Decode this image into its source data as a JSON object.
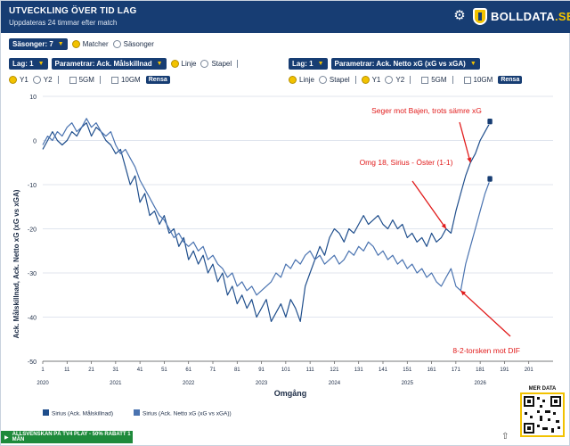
{
  "header": {
    "title": "UTVECKLING ÖVER TID LAG",
    "subtitle": "Uppdateras 24 timmar efter match",
    "brand_main": "BOLLDATA",
    "brand_suffix": ".SE"
  },
  "controls": {
    "seasons_label": "Säsonger: 7",
    "radio_matches": "Matcher",
    "radio_seasons": "Säsonger",
    "left": {
      "team_select": "Lag: 1",
      "param_select": "Parametrar: Ack. Målskillnad",
      "opt_line": "Linje",
      "opt_bar": "Stapel",
      "y1": "Y1",
      "y2": "Y2",
      "gm5": "5GM",
      "gm10": "10GM",
      "clear": "Rensa"
    },
    "right": {
      "team_select": "Lag: 1",
      "param_select": "Parametrar: Ack. Netto xG (xG vs xGA)",
      "opt_line": "Linje",
      "opt_bar": "Stapel",
      "y1": "Y1",
      "y2": "Y2",
      "gm5": "5GM",
      "gm10": "10GM",
      "clear": "Rensa"
    }
  },
  "qr_label": "MER DATA",
  "footer_banner": "ALLSVENSKAN PÅ TV4 PLAY - 50% RABATT 1 MÅN",
  "colors": {
    "navy": "#173d73",
    "yellow": "#f2c200",
    "line_dark": "#1f4e8c",
    "line_mid": "#4a73b0",
    "arrow": "#e11b1b"
  },
  "chart_data": {
    "type": "line",
    "xlabel": "Omgång",
    "ylabel": "Ack. Målskillnad, Ack. Netto xG (xG vs xGA)",
    "ylim": [
      -50,
      10
    ],
    "yticks": [
      10,
      0,
      -10,
      -20,
      -30,
      -40,
      -50
    ],
    "xticks": [
      "1",
      "11",
      "21",
      "31",
      "41",
      "51",
      "61",
      "71",
      "81",
      "91",
      "101",
      "111",
      "121",
      "131",
      "141",
      "151",
      "161",
      "171",
      "181",
      "191",
      "201"
    ],
    "season_labels": [
      "2020",
      "2021",
      "2022",
      "2023",
      "2024",
      "2025",
      "2026"
    ],
    "season_starts": [
      1,
      31,
      61,
      91,
      121,
      151,
      181
    ],
    "series": [
      {
        "name": "Sirius (Ack. Målskillnad)",
        "color": "#1f4e8c",
        "points": [
          [
            1,
            -2
          ],
          [
            3,
            0
          ],
          [
            5,
            2
          ],
          [
            7,
            0
          ],
          [
            9,
            -1
          ],
          [
            11,
            0
          ],
          [
            13,
            2
          ],
          [
            15,
            1
          ],
          [
            17,
            3
          ],
          [
            19,
            4
          ],
          [
            21,
            1
          ],
          [
            23,
            3
          ],
          [
            25,
            2
          ],
          [
            27,
            0
          ],
          [
            29,
            -1
          ],
          [
            31,
            -3
          ],
          [
            33,
            -2
          ],
          [
            35,
            -6
          ],
          [
            37,
            -10
          ],
          [
            39,
            -8
          ],
          [
            41,
            -14
          ],
          [
            43,
            -12
          ],
          [
            45,
            -17
          ],
          [
            47,
            -16
          ],
          [
            49,
            -19
          ],
          [
            51,
            -17
          ],
          [
            53,
            -21
          ],
          [
            55,
            -20
          ],
          [
            57,
            -24
          ],
          [
            59,
            -22
          ],
          [
            61,
            -27
          ],
          [
            63,
            -25
          ],
          [
            65,
            -28
          ],
          [
            67,
            -26
          ],
          [
            69,
            -30
          ],
          [
            71,
            -28
          ],
          [
            73,
            -32
          ],
          [
            75,
            -30
          ],
          [
            77,
            -35
          ],
          [
            79,
            -33
          ],
          [
            81,
            -37
          ],
          [
            83,
            -35
          ],
          [
            85,
            -38
          ],
          [
            87,
            -36
          ],
          [
            89,
            -40
          ],
          [
            91,
            -38
          ],
          [
            93,
            -36
          ],
          [
            95,
            -41
          ],
          [
            97,
            -39
          ],
          [
            99,
            -37
          ],
          [
            101,
            -40
          ],
          [
            103,
            -36
          ],
          [
            105,
            -38
          ],
          [
            107,
            -41
          ],
          [
            109,
            -33
          ],
          [
            111,
            -30
          ],
          [
            113,
            -27
          ],
          [
            115,
            -24
          ],
          [
            117,
            -26
          ],
          [
            119,
            -22
          ],
          [
            121,
            -20
          ],
          [
            123,
            -21
          ],
          [
            125,
            -23
          ],
          [
            127,
            -20
          ],
          [
            129,
            -21
          ],
          [
            131,
            -19
          ],
          [
            133,
            -17
          ],
          [
            135,
            -19
          ],
          [
            137,
            -18
          ],
          [
            139,
            -17
          ],
          [
            141,
            -19
          ],
          [
            143,
            -20
          ],
          [
            145,
            -18
          ],
          [
            147,
            -20
          ],
          [
            149,
            -19
          ],
          [
            151,
            -22
          ],
          [
            153,
            -21
          ],
          [
            155,
            -23
          ],
          [
            157,
            -22
          ],
          [
            159,
            -24
          ],
          [
            161,
            -21
          ],
          [
            163,
            -23
          ],
          [
            165,
            -22
          ],
          [
            167,
            -20
          ],
          [
            169,
            -21
          ],
          [
            171,
            -16
          ],
          [
            173,
            -12
          ],
          [
            175,
            -8
          ],
          [
            177,
            -5
          ],
          [
            179,
            -3
          ],
          [
            181,
            0
          ],
          [
            183,
            2
          ],
          [
            185,
            4
          ]
        ]
      },
      {
        "name": "Sirius (Ack. Netto xG (xG vs xGA))",
        "color": "#4a73b0",
        "points": [
          [
            1,
            -1
          ],
          [
            3,
            1
          ],
          [
            5,
            0
          ],
          [
            7,
            2
          ],
          [
            9,
            1
          ],
          [
            11,
            3
          ],
          [
            13,
            4
          ],
          [
            15,
            2
          ],
          [
            17,
            3
          ],
          [
            19,
            5
          ],
          [
            21,
            3
          ],
          [
            23,
            4
          ],
          [
            25,
            2
          ],
          [
            27,
            1
          ],
          [
            29,
            2
          ],
          [
            31,
            -1
          ],
          [
            33,
            -3
          ],
          [
            35,
            -2
          ],
          [
            37,
            -4
          ],
          [
            39,
            -6
          ],
          [
            41,
            -9
          ],
          [
            43,
            -11
          ],
          [
            45,
            -13
          ],
          [
            47,
            -15
          ],
          [
            49,
            -17
          ],
          [
            51,
            -18
          ],
          [
            53,
            -20
          ],
          [
            55,
            -22
          ],
          [
            57,
            -21
          ],
          [
            59,
            -23
          ],
          [
            61,
            -24
          ],
          [
            63,
            -23
          ],
          [
            65,
            -25
          ],
          [
            67,
            -24
          ],
          [
            69,
            -27
          ],
          [
            71,
            -26
          ],
          [
            73,
            -28
          ],
          [
            75,
            -29
          ],
          [
            77,
            -31
          ],
          [
            79,
            -30
          ],
          [
            81,
            -33
          ],
          [
            83,
            -32
          ],
          [
            85,
            -34
          ],
          [
            87,
            -33
          ],
          [
            89,
            -35
          ],
          [
            91,
            -34
          ],
          [
            93,
            -33
          ],
          [
            95,
            -32
          ],
          [
            97,
            -30
          ],
          [
            99,
            -31
          ],
          [
            101,
            -28
          ],
          [
            103,
            -29
          ],
          [
            105,
            -27
          ],
          [
            107,
            -28
          ],
          [
            109,
            -26
          ],
          [
            111,
            -25
          ],
          [
            113,
            -27
          ],
          [
            115,
            -26
          ],
          [
            117,
            -28
          ],
          [
            119,
            -27
          ],
          [
            121,
            -26
          ],
          [
            123,
            -28
          ],
          [
            125,
            -27
          ],
          [
            127,
            -25
          ],
          [
            129,
            -26
          ],
          [
            131,
            -24
          ],
          [
            133,
            -25
          ],
          [
            135,
            -23
          ],
          [
            137,
            -24
          ],
          [
            139,
            -26
          ],
          [
            141,
            -25
          ],
          [
            143,
            -27
          ],
          [
            145,
            -26
          ],
          [
            147,
            -28
          ],
          [
            149,
            -27
          ],
          [
            151,
            -29
          ],
          [
            153,
            -28
          ],
          [
            155,
            -30
          ],
          [
            157,
            -29
          ],
          [
            159,
            -31
          ],
          [
            161,
            -30
          ],
          [
            163,
            -32
          ],
          [
            165,
            -33
          ],
          [
            167,
            -31
          ],
          [
            169,
            -29
          ],
          [
            171,
            -33
          ],
          [
            173,
            -34
          ],
          [
            175,
            -28
          ],
          [
            177,
            -24
          ],
          [
            179,
            -20
          ],
          [
            181,
            -16
          ],
          [
            183,
            -12
          ],
          [
            185,
            -9
          ]
        ]
      }
    ],
    "annotations": [
      {
        "text": "Seger mot Bajen, trots sämre xG",
        "x": 177,
        "y": -5
      },
      {
        "text": "Omg 18, Sirius - Öster (1-1)",
        "x": 167,
        "y": -20
      },
      {
        "text": "8-2-torsken mot DIF",
        "x": 173,
        "y": -34
      }
    ],
    "legend": [
      {
        "label": "Sirius (Ack. Målskillnad)",
        "color": "#1f4e8c"
      },
      {
        "label": "Sirius (Ack. Netto xG (xG vs xGA))",
        "color": "#4a73b0"
      }
    ],
    "xlim": [
      1,
      211
    ]
  }
}
